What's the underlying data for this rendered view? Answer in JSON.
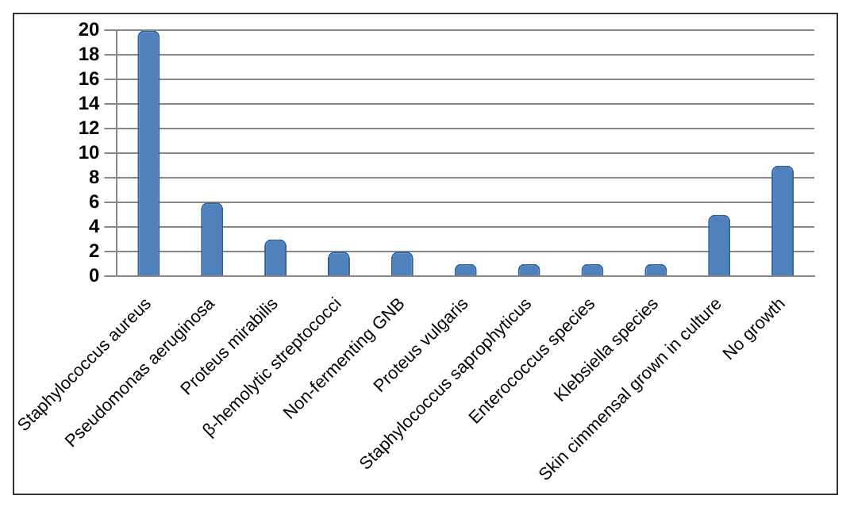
{
  "chart_data": {
    "type": "bar",
    "categories": [
      "Staphylococcus aureus",
      "Pseudomonas aeruginosa",
      "Proteus mirabilis",
      "β-hemolytic streptococci",
      "Non-fermenting GNB",
      "Proteus vulgaris",
      "Staphylococcus saprophyticus",
      "Enterococcus species",
      "Klebsiella species",
      "Skin cimmensal grown in culture",
      "No growth"
    ],
    "values": [
      20,
      6,
      3,
      2,
      2,
      1,
      1,
      1,
      1,
      5,
      9
    ],
    "color": "#4f81bd",
    "ylim": [
      0,
      20
    ],
    "yticks": [
      0,
      2,
      4,
      6,
      8,
      10,
      12,
      14,
      16,
      18,
      20
    ],
    "grid": "y"
  }
}
